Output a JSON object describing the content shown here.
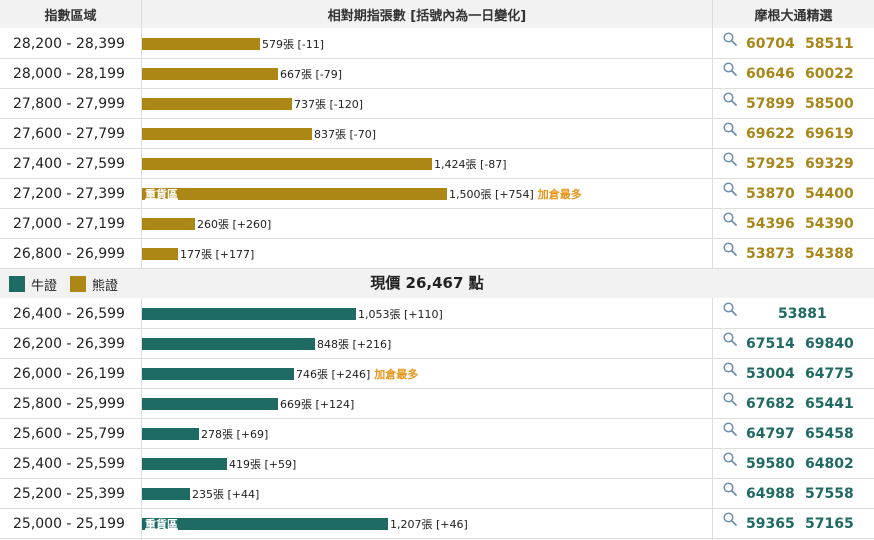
{
  "header": {
    "col_range": "指數區域",
    "col_bars": "相對期指張數 [括號內為一日變化]",
    "col_codes": "摩根大通精選"
  },
  "colors": {
    "bear": "#ad8716",
    "bull": "#1d6b63",
    "hot": "#e8961e"
  },
  "legend": {
    "bull_label": "牛證",
    "bear_label": "熊證"
  },
  "current_price": "現價 26,467 點",
  "icons": {
    "search": "magnifier-icon"
  },
  "chart_data": {
    "type": "bar",
    "unit": "張",
    "bear": [
      {
        "range": "28,200 - 28,399",
        "value": 579,
        "count_label": "579張 [-11]",
        "change": -11,
        "tag": "",
        "hot": "",
        "codes": [
          "60704",
          "58511"
        ]
      },
      {
        "range": "28,000 - 28,199",
        "value": 667,
        "count_label": "667張 [-79]",
        "change": -79,
        "tag": "",
        "hot": "",
        "codes": [
          "60646",
          "60022"
        ]
      },
      {
        "range": "27,800 - 27,999",
        "value": 737,
        "count_label": "737張 [-120]",
        "change": -120,
        "tag": "",
        "hot": "",
        "codes": [
          "57899",
          "58500"
        ]
      },
      {
        "range": "27,600 - 27,799",
        "value": 837,
        "count_label": "837張 [-70]",
        "change": -70,
        "tag": "",
        "hot": "",
        "codes": [
          "69622",
          "69619"
        ]
      },
      {
        "range": "27,400 - 27,599",
        "value": 1424,
        "count_label": "1,424張 [-87]",
        "change": -87,
        "tag": "",
        "hot": "",
        "codes": [
          "57925",
          "69329"
        ]
      },
      {
        "range": "27,200 - 27,399",
        "value": 1500,
        "count_label": "1,500張 [+754]",
        "change": 754,
        "tag": "重貨區",
        "hot": "加倉最多",
        "codes": [
          "53870",
          "54400"
        ]
      },
      {
        "range": "27,000 - 27,199",
        "value": 260,
        "count_label": "260張 [+260]",
        "change": 260,
        "tag": "",
        "hot": "",
        "codes": [
          "54396",
          "54390"
        ]
      },
      {
        "range": "26,800 - 26,999",
        "value": 177,
        "count_label": "177張 [+177]",
        "change": 177,
        "tag": "",
        "hot": "",
        "codes": [
          "53873",
          "54388"
        ]
      }
    ],
    "bull": [
      {
        "range": "26,400 - 26,599",
        "value": 1053,
        "count_label": "1,053張 [+110]",
        "change": 110,
        "tag": "",
        "hot": "",
        "codes": [
          "53881"
        ]
      },
      {
        "range": "26,200 - 26,399",
        "value": 848,
        "count_label": "848張 [+216]",
        "change": 216,
        "tag": "",
        "hot": "",
        "codes": [
          "67514",
          "69840"
        ]
      },
      {
        "range": "26,000 - 26,199",
        "value": 746,
        "count_label": "746張 [+246]",
        "change": 246,
        "tag": "",
        "hot": "加倉最多",
        "codes": [
          "53004",
          "64775"
        ]
      },
      {
        "range": "25,800 - 25,999",
        "value": 669,
        "count_label": "669張 [+124]",
        "change": 124,
        "tag": "",
        "hot": "",
        "codes": [
          "67682",
          "65441"
        ]
      },
      {
        "range": "25,600 - 25,799",
        "value": 278,
        "count_label": "278張 [+69]",
        "change": 69,
        "tag": "",
        "hot": "",
        "codes": [
          "64797",
          "65458"
        ]
      },
      {
        "range": "25,400 - 25,599",
        "value": 419,
        "count_label": "419張 [+59]",
        "change": 59,
        "tag": "",
        "hot": "",
        "codes": [
          "59580",
          "64802"
        ]
      },
      {
        "range": "25,200 - 25,399",
        "value": 235,
        "count_label": "235張 [+44]",
        "change": 44,
        "tag": "",
        "hot": "",
        "codes": [
          "64988",
          "57558"
        ]
      },
      {
        "range": "25,000 - 25,199",
        "value": 1207,
        "count_label": "1,207張 [+46]",
        "change": 46,
        "tag": "重貨區",
        "hot": "",
        "codes": [
          "59365",
          "57165"
        ]
      }
    ]
  }
}
